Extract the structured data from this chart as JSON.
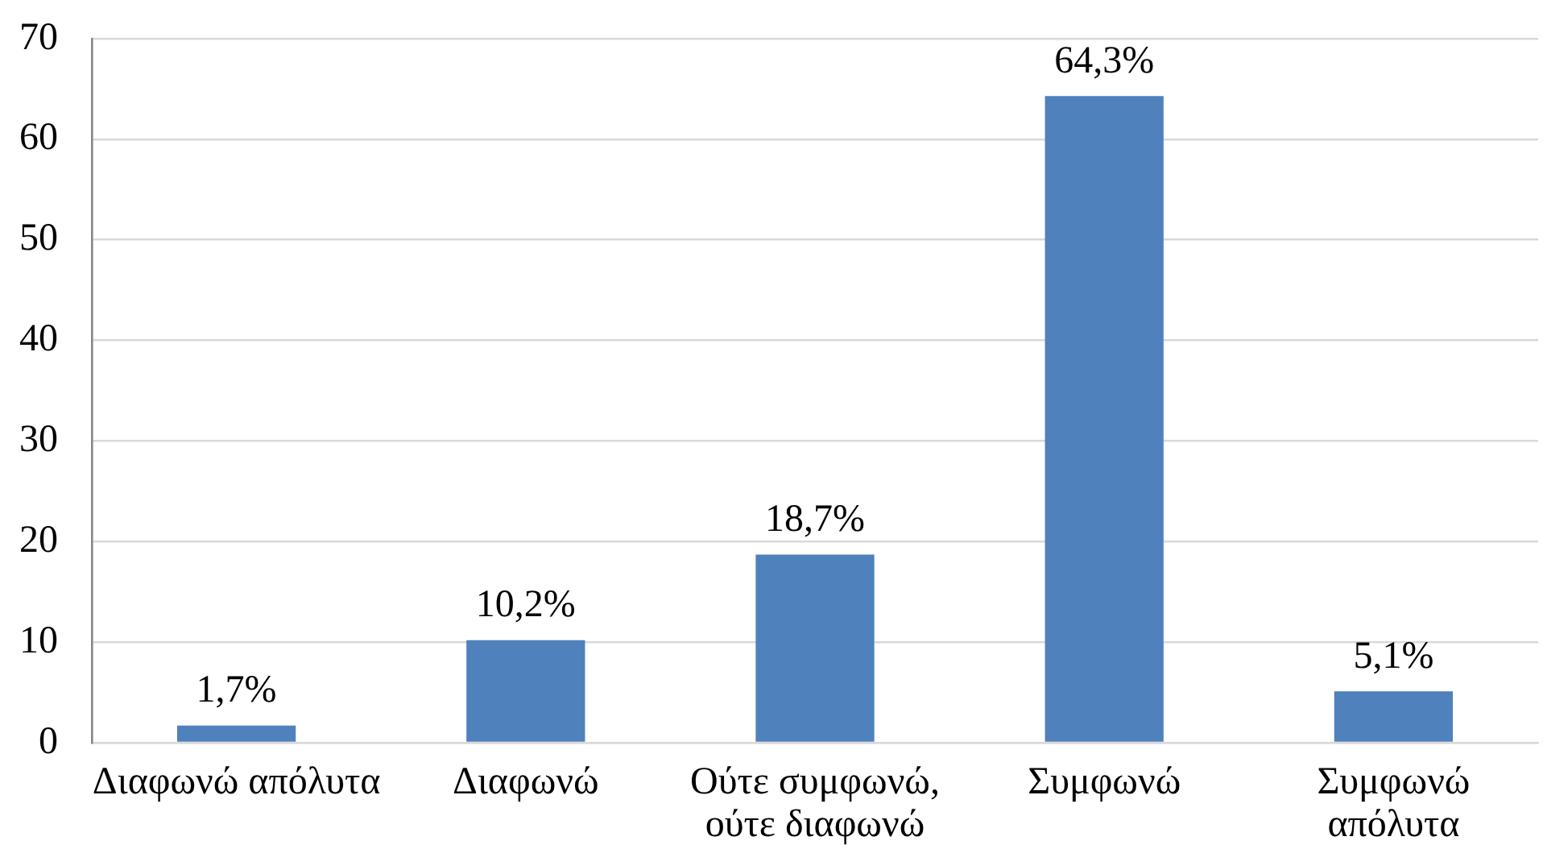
{
  "chart_data": {
    "type": "bar",
    "categories": [
      "Διαφωνώ απόλυτα",
      "Διαφωνώ",
      "Ούτε συμφωνώ, ούτε διαφωνώ",
      "Συμφωνώ",
      "Συμφωνώ απόλυτα"
    ],
    "values": [
      1.7,
      10.2,
      18.7,
      64.3,
      5.1
    ],
    "value_labels": [
      "1,7%",
      "10,2%",
      "18,7%",
      "64,3%",
      "5,1%"
    ],
    "color": "#4f81bd",
    "ylim": [
      0,
      70
    ],
    "yticks": [
      0,
      10,
      20,
      30,
      40,
      50,
      60,
      70
    ],
    "grid": "y"
  }
}
